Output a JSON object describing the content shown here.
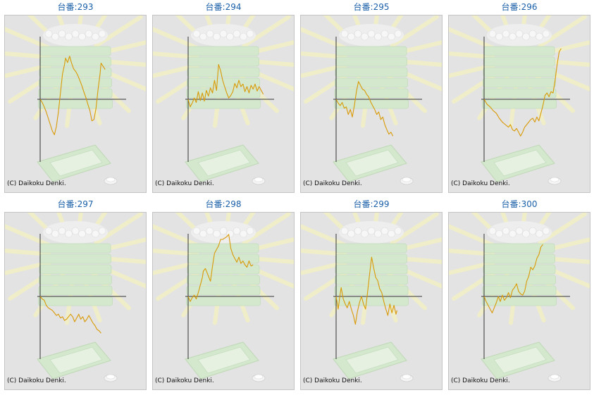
{
  "machine_prefix": "台番:",
  "copyright": "(C) Daikoku Denki.",
  "colors": {
    "line": "#d99a06",
    "axis": "#333333",
    "panel": "#e3e3e3",
    "title": "#1a5fa8"
  },
  "chart_data": [
    {
      "type": "line",
      "title": "293",
      "ylim": [
        -1,
        1
      ],
      "points": [
        [
          0,
          0
        ],
        [
          0.02,
          -0.05
        ],
        [
          0.04,
          -0.12
        ],
        [
          0.06,
          -0.2
        ],
        [
          0.08,
          -0.3
        ],
        [
          0.1,
          -0.4
        ],
        [
          0.12,
          -0.5
        ],
        [
          0.14,
          -0.56
        ],
        [
          0.16,
          -0.43
        ],
        [
          0.18,
          -0.2
        ],
        [
          0.2,
          0.1
        ],
        [
          0.22,
          0.4
        ],
        [
          0.24,
          0.55
        ],
        [
          0.25,
          0.65
        ],
        [
          0.27,
          0.58
        ],
        [
          0.29,
          0.68
        ],
        [
          0.31,
          0.57
        ],
        [
          0.33,
          0.48
        ],
        [
          0.35,
          0.44
        ],
        [
          0.37,
          0.38
        ],
        [
          0.39,
          0.3
        ],
        [
          0.41,
          0.22
        ],
        [
          0.43,
          0.12
        ],
        [
          0.45,
          0.03
        ],
        [
          0.47,
          -0.08
        ],
        [
          0.49,
          -0.18
        ],
        [
          0.51,
          -0.34
        ],
        [
          0.53,
          -0.32
        ],
        [
          0.55,
          -0.15
        ],
        [
          0.57,
          0.15
        ],
        [
          0.59,
          0.4
        ],
        [
          0.6,
          0.57
        ],
        [
          0.62,
          0.52
        ],
        [
          0.64,
          0.47
        ]
      ]
    },
    {
      "type": "line",
      "title": "294",
      "ylim": [
        -1,
        1
      ],
      "points": [
        [
          0,
          0
        ],
        [
          0.02,
          -0.12
        ],
        [
          0.04,
          -0.06
        ],
        [
          0.06,
          0.02
        ],
        [
          0.08,
          -0.05
        ],
        [
          0.1,
          0.12
        ],
        [
          0.12,
          -0.02
        ],
        [
          0.14,
          0.1
        ],
        [
          0.16,
          -0.03
        ],
        [
          0.18,
          0.14
        ],
        [
          0.2,
          0.05
        ],
        [
          0.22,
          0.18
        ],
        [
          0.24,
          0.1
        ],
        [
          0.26,
          0.3
        ],
        [
          0.28,
          0.14
        ],
        [
          0.3,
          0.55
        ],
        [
          0.32,
          0.45
        ],
        [
          0.34,
          0.3
        ],
        [
          0.36,
          0.2
        ],
        [
          0.38,
          0.1
        ],
        [
          0.4,
          0.02
        ],
        [
          0.42,
          0.06
        ],
        [
          0.44,
          0.12
        ],
        [
          0.46,
          0.25
        ],
        [
          0.48,
          0.18
        ],
        [
          0.5,
          0.3
        ],
        [
          0.52,
          0.2
        ],
        [
          0.54,
          0.24
        ],
        [
          0.56,
          0.12
        ],
        [
          0.58,
          0.2
        ],
        [
          0.6,
          0.1
        ],
        [
          0.62,
          0.22
        ],
        [
          0.64,
          0.16
        ],
        [
          0.66,
          0.24
        ],
        [
          0.68,
          0.13
        ],
        [
          0.7,
          0.2
        ],
        [
          0.72,
          0.14
        ],
        [
          0.74,
          0.08
        ]
      ]
    },
    {
      "type": "line",
      "title": "295",
      "ylim": [
        -1,
        1
      ],
      "points": [
        [
          0,
          0
        ],
        [
          0.02,
          -0.06
        ],
        [
          0.04,
          -0.1
        ],
        [
          0.06,
          -0.05
        ],
        [
          0.08,
          -0.14
        ],
        [
          0.1,
          -0.12
        ],
        [
          0.12,
          -0.24
        ],
        [
          0.14,
          -0.16
        ],
        [
          0.16,
          -0.28
        ],
        [
          0.18,
          -0.1
        ],
        [
          0.2,
          0.12
        ],
        [
          0.22,
          0.28
        ],
        [
          0.24,
          0.22
        ],
        [
          0.26,
          0.16
        ],
        [
          0.28,
          0.14
        ],
        [
          0.3,
          0.08
        ],
        [
          0.32,
          0.04
        ],
        [
          0.34,
          -0.04
        ],
        [
          0.36,
          -0.1
        ],
        [
          0.38,
          -0.16
        ],
        [
          0.4,
          -0.24
        ],
        [
          0.42,
          -0.2
        ],
        [
          0.44,
          -0.32
        ],
        [
          0.46,
          -0.28
        ],
        [
          0.48,
          -0.4
        ],
        [
          0.5,
          -0.48
        ],
        [
          0.52,
          -0.55
        ],
        [
          0.54,
          -0.52
        ],
        [
          0.56,
          -0.58
        ]
      ]
    },
    {
      "type": "line",
      "title": "296",
      "ylim": [
        -1,
        1
      ],
      "points": [
        [
          0,
          0
        ],
        [
          0.03,
          -0.08
        ],
        [
          0.06,
          -0.12
        ],
        [
          0.09,
          -0.18
        ],
        [
          0.12,
          -0.22
        ],
        [
          0.15,
          -0.3
        ],
        [
          0.18,
          -0.36
        ],
        [
          0.21,
          -0.4
        ],
        [
          0.24,
          -0.44
        ],
        [
          0.26,
          -0.4
        ],
        [
          0.28,
          -0.48
        ],
        [
          0.3,
          -0.5
        ],
        [
          0.32,
          -0.46
        ],
        [
          0.34,
          -0.52
        ],
        [
          0.36,
          -0.58
        ],
        [
          0.38,
          -0.52
        ],
        [
          0.4,
          -0.44
        ],
        [
          0.42,
          -0.4
        ],
        [
          0.44,
          -0.36
        ],
        [
          0.46,
          -0.32
        ],
        [
          0.48,
          -0.3
        ],
        [
          0.5,
          -0.36
        ],
        [
          0.52,
          -0.28
        ],
        [
          0.54,
          -0.34
        ],
        [
          0.56,
          -0.22
        ],
        [
          0.58,
          -0.1
        ],
        [
          0.6,
          0.06
        ],
        [
          0.62,
          0.1
        ],
        [
          0.64,
          0.04
        ],
        [
          0.66,
          0.12
        ],
        [
          0.68,
          0.1
        ],
        [
          0.7,
          0.3
        ],
        [
          0.72,
          0.55
        ],
        [
          0.74,
          0.75
        ],
        [
          0.76,
          0.8
        ]
      ]
    },
    {
      "type": "line",
      "title": "297",
      "ylim": [
        -1,
        1
      ],
      "points": [
        [
          0,
          0
        ],
        [
          0.02,
          -0.04
        ],
        [
          0.04,
          -0.06
        ],
        [
          0.06,
          -0.14
        ],
        [
          0.08,
          -0.18
        ],
        [
          0.1,
          -0.2
        ],
        [
          0.12,
          -0.22
        ],
        [
          0.14,
          -0.26
        ],
        [
          0.16,
          -0.3
        ],
        [
          0.18,
          -0.28
        ],
        [
          0.2,
          -0.34
        ],
        [
          0.22,
          -0.32
        ],
        [
          0.24,
          -0.38
        ],
        [
          0.26,
          -0.36
        ],
        [
          0.28,
          -0.32
        ],
        [
          0.3,
          -0.28
        ],
        [
          0.32,
          -0.32
        ],
        [
          0.34,
          -0.4
        ],
        [
          0.36,
          -0.34
        ],
        [
          0.38,
          -0.28
        ],
        [
          0.4,
          -0.36
        ],
        [
          0.42,
          -0.32
        ],
        [
          0.44,
          -0.4
        ],
        [
          0.46,
          -0.36
        ],
        [
          0.48,
          -0.3
        ],
        [
          0.5,
          -0.36
        ],
        [
          0.52,
          -0.42
        ],
        [
          0.54,
          -0.46
        ],
        [
          0.56,
          -0.52
        ],
        [
          0.58,
          -0.54
        ],
        [
          0.6,
          -0.58
        ]
      ]
    },
    {
      "type": "line",
      "title": "298",
      "ylim": [
        -1,
        1
      ],
      "points": [
        [
          0,
          0
        ],
        [
          0.02,
          -0.08
        ],
        [
          0.04,
          -0.02
        ],
        [
          0.06,
          0.02
        ],
        [
          0.08,
          -0.04
        ],
        [
          0.1,
          0.06
        ],
        [
          0.12,
          0.18
        ],
        [
          0.14,
          0.3
        ],
        [
          0.15,
          0.4
        ],
        [
          0.17,
          0.44
        ],
        [
          0.19,
          0.36
        ],
        [
          0.21,
          0.28
        ],
        [
          0.22,
          0.24
        ],
        [
          0.24,
          0.48
        ],
        [
          0.26,
          0.68
        ],
        [
          0.28,
          0.74
        ],
        [
          0.3,
          0.8
        ],
        [
          0.32,
          0.9
        ],
        [
          0.34,
          0.9
        ],
        [
          0.36,
          0.92
        ],
        [
          0.38,
          0.94
        ],
        [
          0.4,
          0.98
        ],
        [
          0.42,
          0.76
        ],
        [
          0.44,
          0.66
        ],
        [
          0.46,
          0.6
        ],
        [
          0.48,
          0.54
        ],
        [
          0.5,
          0.62
        ],
        [
          0.52,
          0.52
        ],
        [
          0.54,
          0.56
        ],
        [
          0.56,
          0.5
        ],
        [
          0.58,
          0.46
        ],
        [
          0.6,
          0.56
        ],
        [
          0.62,
          0.48
        ],
        [
          0.64,
          0.5
        ]
      ]
    },
    {
      "type": "line",
      "title": "299",
      "ylim": [
        -1,
        1
      ],
      "points": [
        [
          0,
          0
        ],
        [
          0.02,
          -0.2
        ],
        [
          0.04,
          0.04
        ],
        [
          0.05,
          0.14
        ],
        [
          0.07,
          -0.04
        ],
        [
          0.09,
          -0.12
        ],
        [
          0.11,
          -0.18
        ],
        [
          0.13,
          -0.08
        ],
        [
          0.15,
          -0.2
        ],
        [
          0.17,
          -0.3
        ],
        [
          0.19,
          -0.44
        ],
        [
          0.21,
          -0.24
        ],
        [
          0.23,
          -0.1
        ],
        [
          0.25,
          0.0
        ],
        [
          0.27,
          -0.12
        ],
        [
          0.29,
          -0.2
        ],
        [
          0.31,
          0.06
        ],
        [
          0.33,
          0.35
        ],
        [
          0.35,
          0.62
        ],
        [
          0.37,
          0.45
        ],
        [
          0.39,
          0.3
        ],
        [
          0.41,
          0.25
        ],
        [
          0.43,
          0.12
        ],
        [
          0.45,
          0.06
        ],
        [
          0.47,
          -0.08
        ],
        [
          0.49,
          -0.2
        ],
        [
          0.51,
          -0.3
        ],
        [
          0.53,
          -0.12
        ],
        [
          0.55,
          -0.26
        ],
        [
          0.57,
          -0.14
        ],
        [
          0.59,
          -0.28
        ],
        [
          0.6,
          -0.22
        ]
      ]
    },
    {
      "type": "line",
      "title": "300",
      "ylim": [
        -1,
        1
      ],
      "points": [
        [
          0,
          0
        ],
        [
          0.02,
          -0.08
        ],
        [
          0.04,
          -0.14
        ],
        [
          0.06,
          -0.2
        ],
        [
          0.08,
          -0.26
        ],
        [
          0.1,
          -0.18
        ],
        [
          0.12,
          -0.1
        ],
        [
          0.14,
          0.0
        ],
        [
          0.16,
          -0.08
        ],
        [
          0.18,
          0.02
        ],
        [
          0.2,
          -0.06
        ],
        [
          0.22,
          -0.02
        ],
        [
          0.24,
          0.06
        ],
        [
          0.26,
          -0.02
        ],
        [
          0.28,
          0.1
        ],
        [
          0.3,
          0.14
        ],
        [
          0.32,
          0.2
        ],
        [
          0.34,
          0.08
        ],
        [
          0.36,
          0.04
        ],
        [
          0.38,
          0.02
        ],
        [
          0.4,
          0.08
        ],
        [
          0.42,
          0.24
        ],
        [
          0.44,
          0.32
        ],
        [
          0.46,
          0.46
        ],
        [
          0.48,
          0.42
        ],
        [
          0.5,
          0.48
        ],
        [
          0.52,
          0.6
        ],
        [
          0.54,
          0.66
        ],
        [
          0.56,
          0.78
        ],
        [
          0.58,
          0.82
        ]
      ]
    }
  ]
}
